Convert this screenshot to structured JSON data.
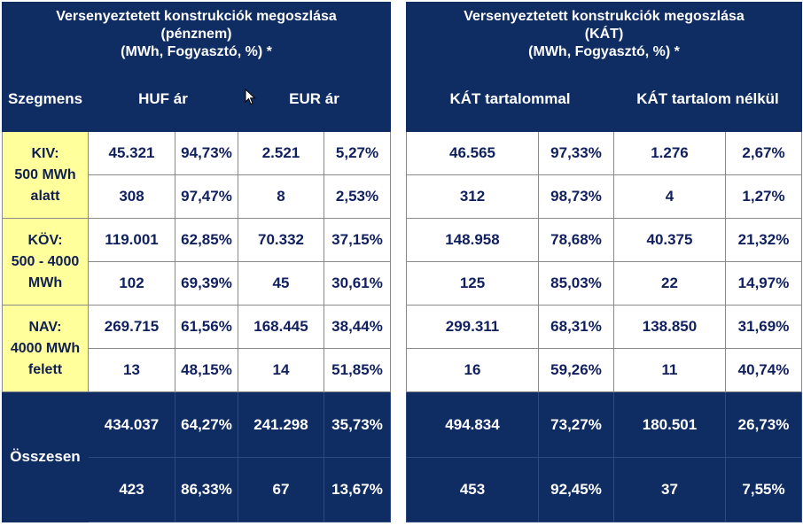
{
  "left": {
    "title_lines": [
      "Versenyeztetett konstrukciók megoszlása",
      "(pénznem)",
      "(MWh, Fogyasztó, %) *"
    ],
    "headers": {
      "segment": "Szegmens",
      "col1": "HUF ár",
      "col2": "EUR ár"
    },
    "segments": [
      {
        "label_lines": [
          "KIV:",
          "500 MWh",
          "alatt"
        ],
        "rows": [
          [
            "45.321",
            "94,73%",
            "2.521",
            "5,27%"
          ],
          [
            "308",
            "97,47%",
            "8",
            "2,53%"
          ]
        ]
      },
      {
        "label_lines": [
          "KÖV:",
          "500 - 4000",
          "MWh"
        ],
        "rows": [
          [
            "119.001",
            "62,85%",
            "70.332",
            "37,15%"
          ],
          [
            "102",
            "69,39%",
            "45",
            "30,61%"
          ]
        ]
      },
      {
        "label_lines": [
          "NAV:",
          "4000 MWh",
          "felett"
        ],
        "rows": [
          [
            "269.715",
            "61,56%",
            "168.445",
            "38,44%"
          ],
          [
            "13",
            "48,15%",
            "14",
            "51,85%"
          ]
        ]
      }
    ],
    "total": {
      "label": "Összesen",
      "rows": [
        [
          "434.037",
          "64,27%",
          "241.298",
          "35,73%"
        ],
        [
          "423",
          "86,33%",
          "67",
          "13,67%"
        ]
      ]
    }
  },
  "right": {
    "title_lines": [
      "Versenyeztetett konstrukciók megoszlása",
      "(KÁT)",
      "(MWh, Fogyasztó, %) *"
    ],
    "headers": {
      "col1": "KÁT tartalommal",
      "col2": "KÁT tartalom nélkül"
    },
    "segments": [
      {
        "rows": [
          [
            "46.565",
            "97,33%",
            "1.276",
            "2,67%"
          ],
          [
            "312",
            "98,73%",
            "4",
            "1,27%"
          ]
        ]
      },
      {
        "rows": [
          [
            "148.958",
            "78,68%",
            "40.375",
            "21,32%"
          ],
          [
            "125",
            "85,03%",
            "22",
            "14,97%"
          ]
        ]
      },
      {
        "rows": [
          [
            "299.311",
            "68,31%",
            "138.850",
            "31,69%"
          ],
          [
            "16",
            "59,26%",
            "11",
            "40,74%"
          ]
        ]
      }
    ],
    "total": {
      "rows": [
        [
          "494.834",
          "73,27%",
          "180.501",
          "26,73%"
        ],
        [
          "453",
          "92,45%",
          "37",
          "7,55%"
        ]
      ]
    }
  }
}
